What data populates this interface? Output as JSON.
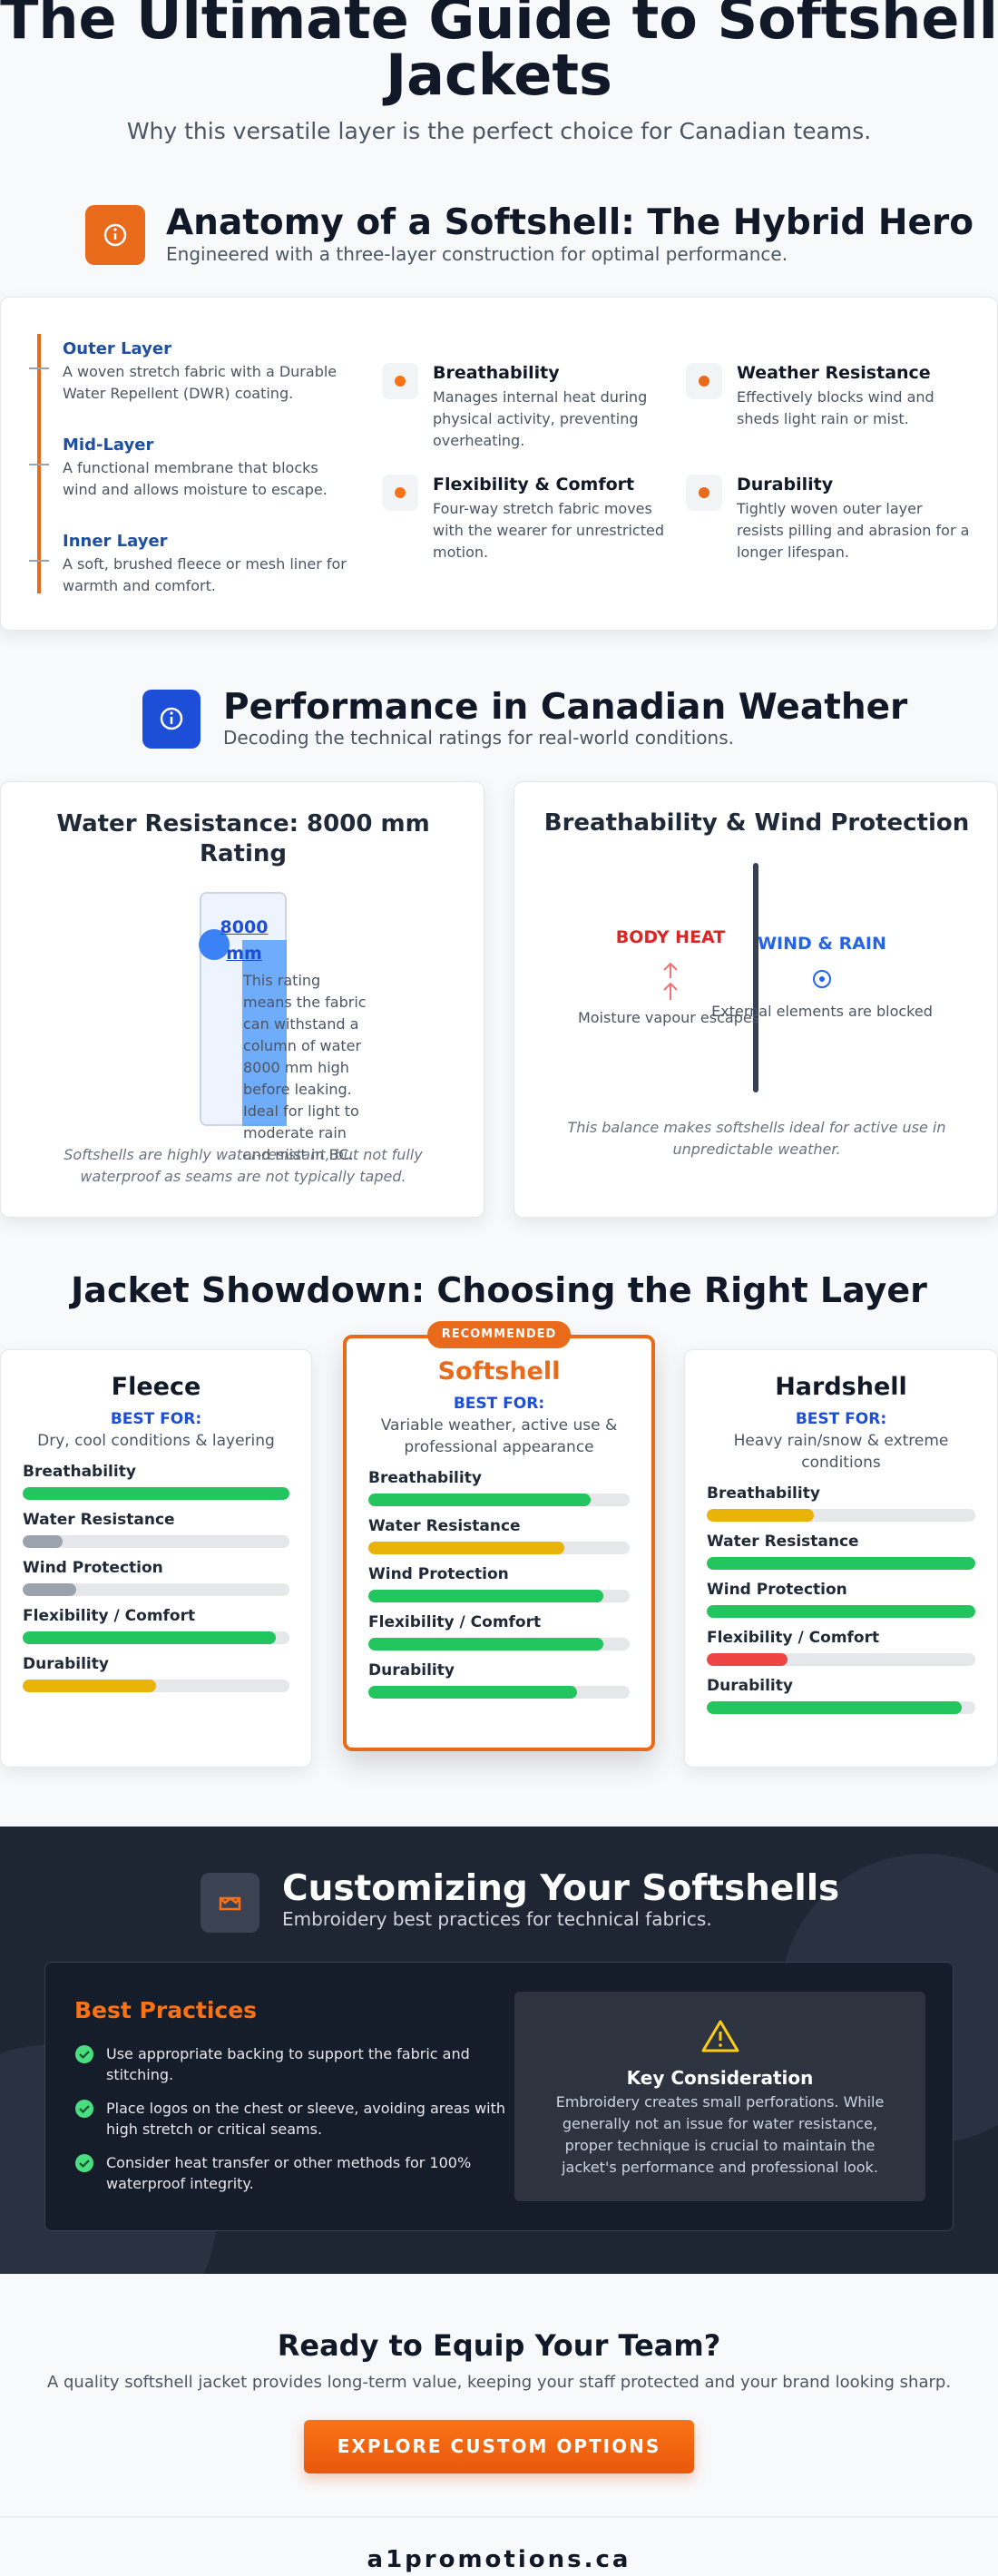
{
  "header": {
    "title": "The Ultimate Guide to Softshell Jackets",
    "subtitle": "Why this versatile layer is the perfect choice for Canadian teams."
  },
  "anatomy": {
    "title": "Anatomy of a Softshell: The Hybrid Hero",
    "subtitle": "Engineered with a three-layer construction for optimal performance.",
    "layers": [
      {
        "name": "Outer Layer",
        "text": "A woven stretch fabric with a Durable Water Repellent (DWR) coating."
      },
      {
        "name": "Mid-Layer",
        "text": "A functional membrane that blocks wind and allows moisture to escape."
      },
      {
        "name": "Inner Layer",
        "text": "A soft, brushed fleece or mesh liner for warmth and comfort."
      }
    ],
    "features": [
      {
        "title": "Breathability",
        "text": "Manages internal heat during physical activity, preventing overheating."
      },
      {
        "title": "Weather Resistance",
        "text": "Effectively blocks wind and sheds light rain or mist."
      },
      {
        "title": "Flexibility & Comfort",
        "text": "Four-way stretch fabric moves with the wearer for unrestricted motion."
      },
      {
        "title": "Durability",
        "text": "Tightly woven outer layer resists pilling and abrasion for a longer lifespan."
      }
    ]
  },
  "performance": {
    "title": "Performance in Canadian Weather",
    "subtitle": "Decoding the technical ratings for real-world conditions.",
    "water": {
      "title": "Water Resistance: 8000 mm Rating",
      "rating": "8000 mm",
      "text": "This rating means the fabric can withstand a column of water 8000 mm high before leaking. Ideal for light to moderate rain and mist in BC.",
      "note": "Softshells are highly water-resistant, but not fully waterproof as seams are not typically taped."
    },
    "breath": {
      "title": "Breathability & Wind Protection",
      "left_label": "BODY HEAT",
      "left_text": "Moisture vapour escapes",
      "right_label": "WIND & RAIN",
      "right_text": "External elements are blocked",
      "note": "This balance makes softshells ideal for active use in unpredictable weather."
    }
  },
  "showdown": {
    "title": "Jacket Showdown: Choosing the Right Layer",
    "badge": "RECOMMENDED",
    "best_for_label": "BEST FOR:",
    "jackets": [
      {
        "name": "Fleece",
        "best_for": "Dry, cool conditions & layering",
        "ratings": [
          {
            "label": "Breathability",
            "value": 100,
            "color": "#22c55e"
          },
          {
            "label": "Water Resistance",
            "value": 15,
            "color": "#9ca3af"
          },
          {
            "label": "Wind Protection",
            "value": 20,
            "color": "#9ca3af"
          },
          {
            "label": "Flexibility / Comfort",
            "value": 95,
            "color": "#22c55e"
          },
          {
            "label": "Durability",
            "value": 50,
            "color": "#eab308"
          }
        ]
      },
      {
        "name": "Softshell",
        "best_for": "Variable weather, active use & professional appearance",
        "ratings": [
          {
            "label": "Breathability",
            "value": 85,
            "color": "#22c55e"
          },
          {
            "label": "Water Resistance",
            "value": 75,
            "color": "#eab308"
          },
          {
            "label": "Wind Protection",
            "value": 90,
            "color": "#22c55e"
          },
          {
            "label": "Flexibility / Comfort",
            "value": 90,
            "color": "#22c55e"
          },
          {
            "label": "Durability",
            "value": 80,
            "color": "#22c55e"
          }
        ]
      },
      {
        "name": "Hardshell",
        "best_for": "Heavy rain/snow & extreme conditions",
        "ratings": [
          {
            "label": "Breathability",
            "value": 40,
            "color": "#eab308"
          },
          {
            "label": "Water Resistance",
            "value": 100,
            "color": "#22c55e"
          },
          {
            "label": "Wind Protection",
            "value": 100,
            "color": "#22c55e"
          },
          {
            "label": "Flexibility / Comfort",
            "value": 30,
            "color": "#ef4444"
          },
          {
            "label": "Durability",
            "value": 95,
            "color": "#22c55e"
          }
        ]
      }
    ]
  },
  "customizing": {
    "title": "Customizing Your Softshells",
    "subtitle": "Embroidery best practices for technical fabrics.",
    "practices_title": "Best Practices",
    "practices": [
      "Use appropriate backing to support the fabric and stitching.",
      "Place logos on the chest or sleeve, avoiding areas with high stretch or critical seams.",
      "Consider heat transfer or other methods for 100% waterproof integrity."
    ],
    "key_title": "Key Consideration",
    "key_text": "Embroidery creates small perforations. While generally not an issue for water resistance, proper technique is crucial to maintain the jacket's performance and professional look."
  },
  "cta": {
    "title": "Ready to Equip Your Team?",
    "text": "A quality softshell jacket provides long-term value, keeping your staff protected and your brand looking sharp.",
    "button": "EXPLORE CUSTOM OPTIONS"
  },
  "footer": {
    "brand": "a1promotions.ca"
  }
}
